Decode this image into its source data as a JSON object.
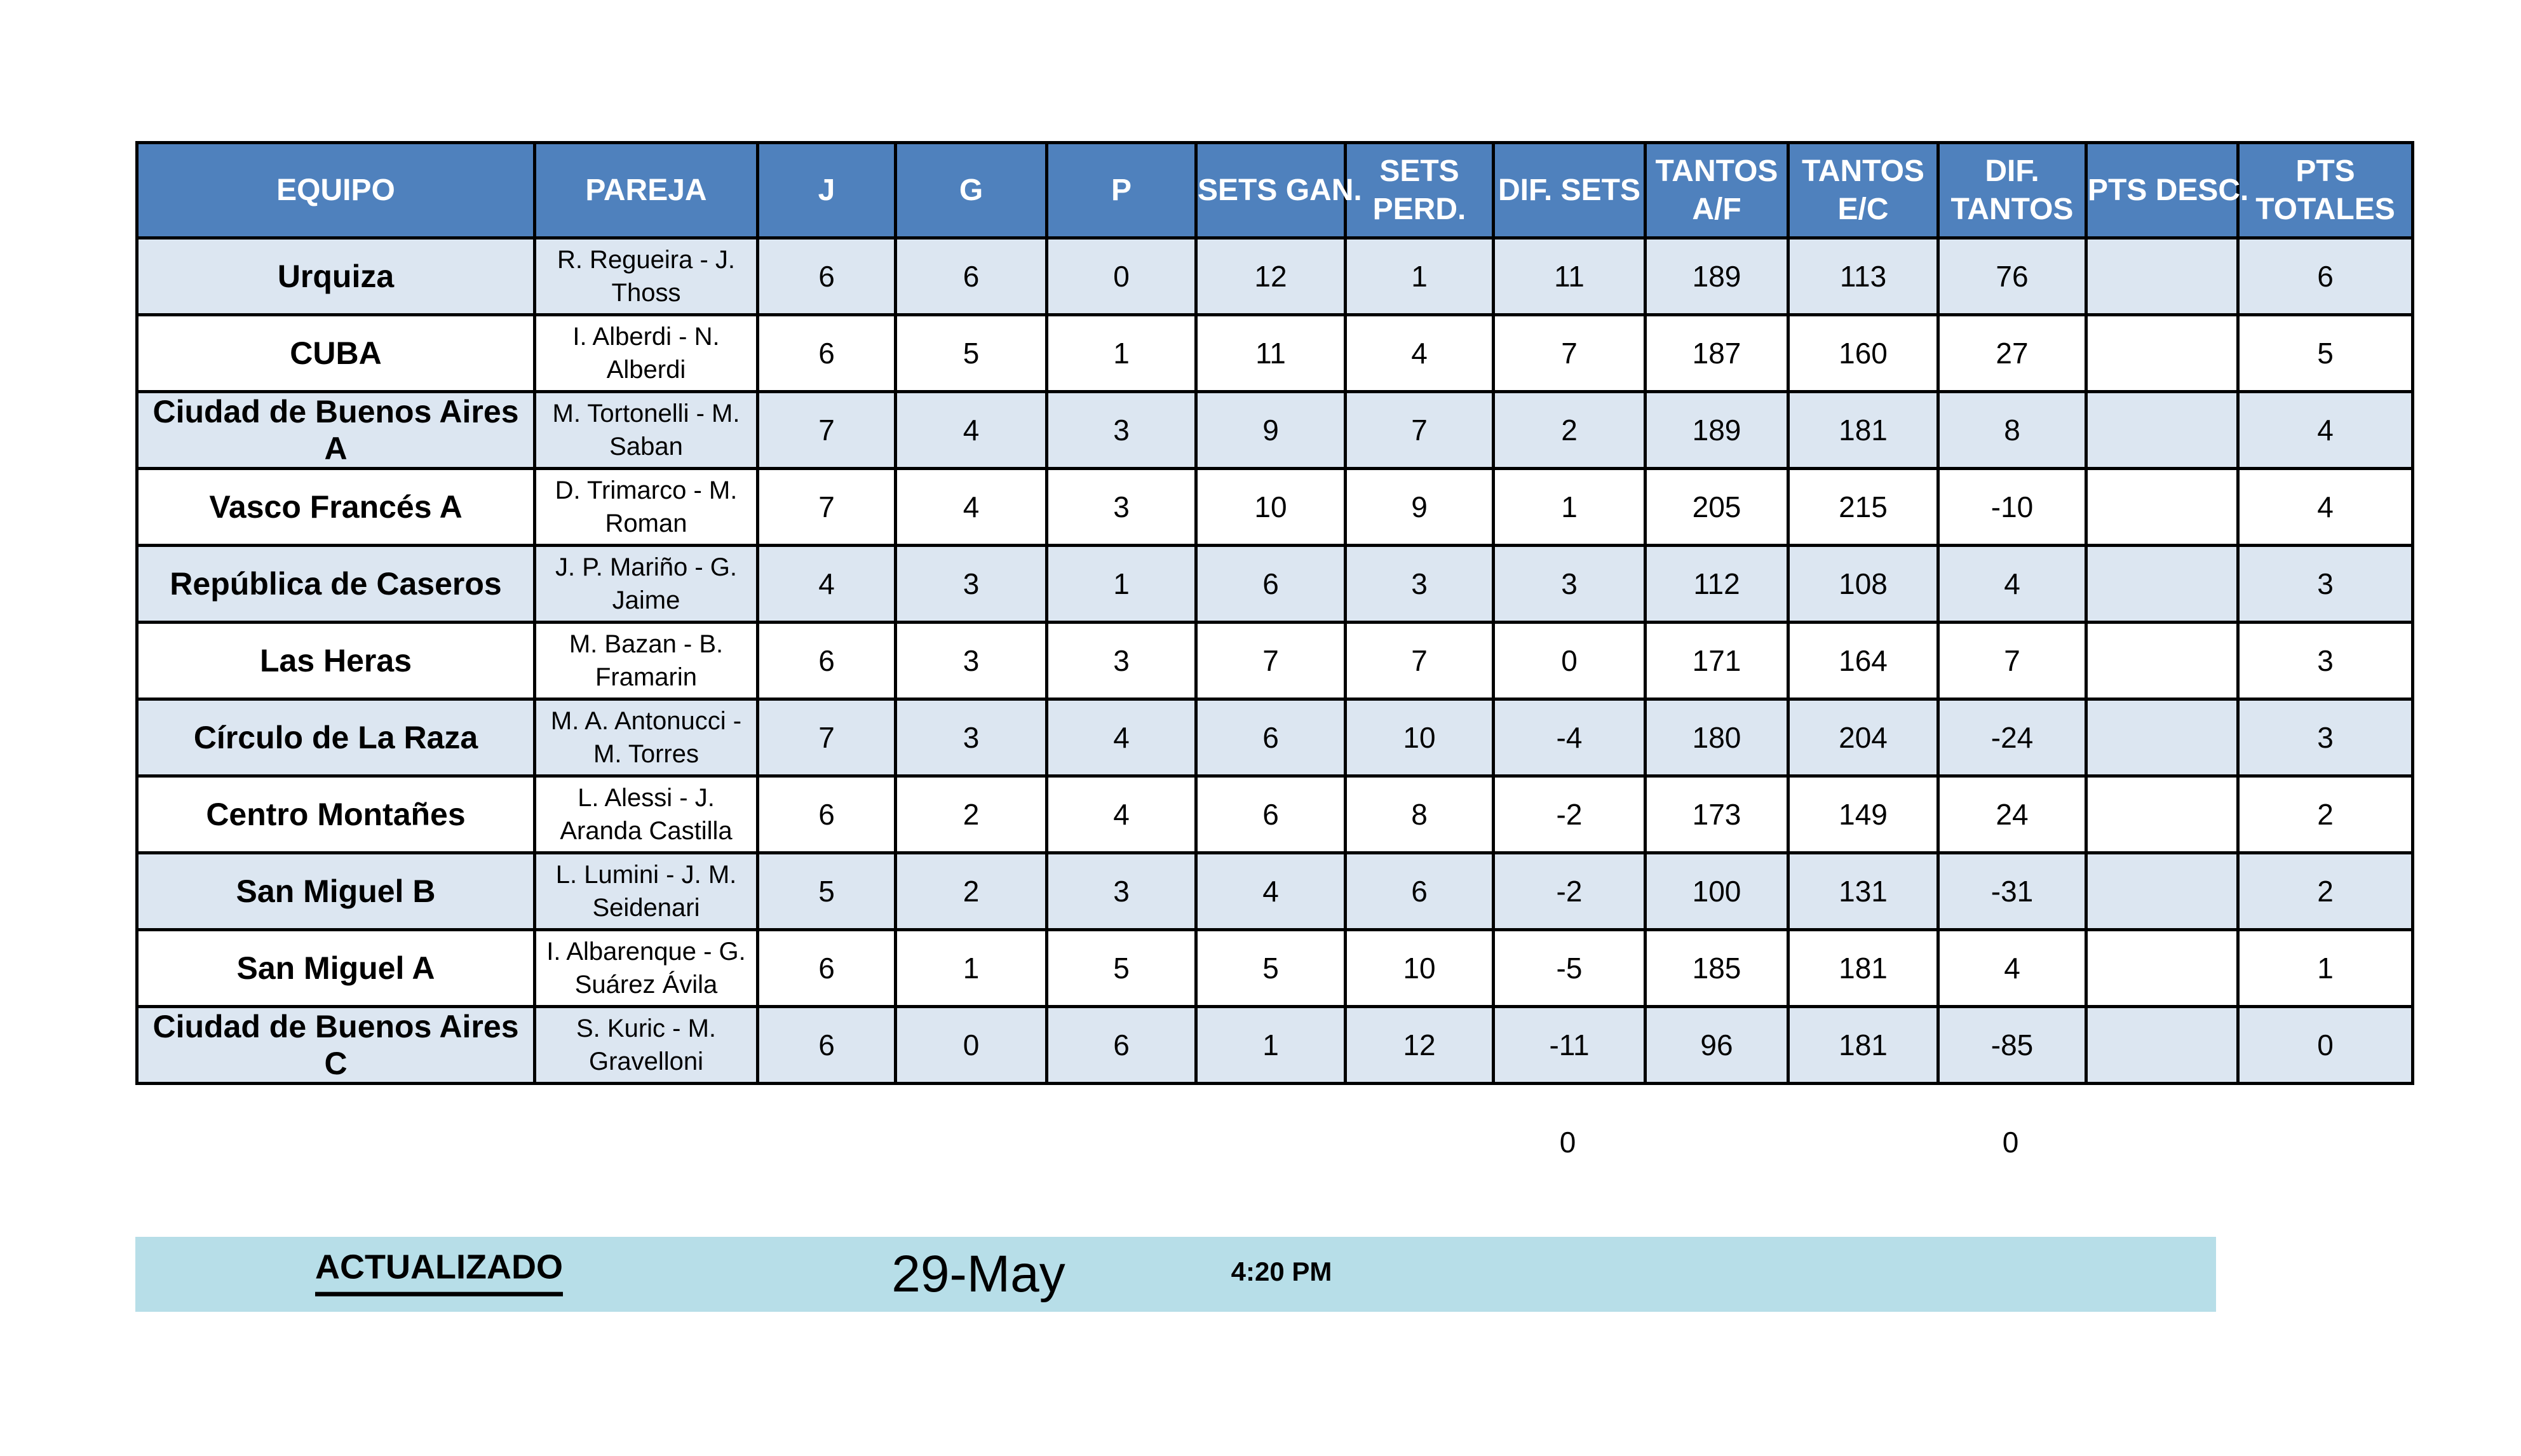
{
  "table": {
    "columns": [
      {
        "key": "equipo",
        "label": "EQUIPO"
      },
      {
        "key": "pareja",
        "label": "PAREJA"
      },
      {
        "key": "j",
        "label": "J"
      },
      {
        "key": "g",
        "label": "G"
      },
      {
        "key": "p",
        "label": "P"
      },
      {
        "key": "sets_gan",
        "label": "SETS GAN."
      },
      {
        "key": "sets_perd",
        "label": "SETS\nPERD."
      },
      {
        "key": "dif_sets",
        "label": "DIF. SETS"
      },
      {
        "key": "tantos_af",
        "label": "TANTOS\nA/F"
      },
      {
        "key": "tantos_ec",
        "label": "TANTOS\nE/C"
      },
      {
        "key": "dif_tantos",
        "label": "DIF.\nTANTOS"
      },
      {
        "key": "pts_desc",
        "label": "PTS DESC."
      },
      {
        "key": "pts_totales",
        "label": "PTS\nTOTALES"
      }
    ],
    "rows": [
      {
        "equipo": "Urquiza",
        "pareja": "R. Regueira - J. Thoss",
        "j": "6",
        "g": "6",
        "p": "0",
        "sets_gan": "12",
        "sets_perd": "1",
        "dif_sets": "11",
        "tantos_af": "189",
        "tantos_ec": "113",
        "dif_tantos": "76",
        "pts_desc": "",
        "pts_totales": "6"
      },
      {
        "equipo": "CUBA",
        "pareja": "I. Alberdi - N. Alberdi",
        "j": "6",
        "g": "5",
        "p": "1",
        "sets_gan": "11",
        "sets_perd": "4",
        "dif_sets": "7",
        "tantos_af": "187",
        "tantos_ec": "160",
        "dif_tantos": "27",
        "pts_desc": "",
        "pts_totales": "5"
      },
      {
        "equipo": "Ciudad de Buenos Aires A",
        "pareja": "M. Tortonelli - M. Saban",
        "j": "7",
        "g": "4",
        "p": "3",
        "sets_gan": "9",
        "sets_perd": "7",
        "dif_sets": "2",
        "tantos_af": "189",
        "tantos_ec": "181",
        "dif_tantos": "8",
        "pts_desc": "",
        "pts_totales": "4"
      },
      {
        "equipo": "Vasco Francés A",
        "pareja": "D. Trimarco - M. Roman",
        "j": "7",
        "g": "4",
        "p": "3",
        "sets_gan": "10",
        "sets_perd": "9",
        "dif_sets": "1",
        "tantos_af": "205",
        "tantos_ec": "215",
        "dif_tantos": "-10",
        "pts_desc": "",
        "pts_totales": "4"
      },
      {
        "equipo": "República de Caseros",
        "pareja": "J. P. Mariño - G. Jaime",
        "j": "4",
        "g": "3",
        "p": "1",
        "sets_gan": "6",
        "sets_perd": "3",
        "dif_sets": "3",
        "tantos_af": "112",
        "tantos_ec": "108",
        "dif_tantos": "4",
        "pts_desc": "",
        "pts_totales": "3"
      },
      {
        "equipo": "Las Heras",
        "pareja": "M. Bazan - B. Framarin",
        "j": "6",
        "g": "3",
        "p": "3",
        "sets_gan": "7",
        "sets_perd": "7",
        "dif_sets": "0",
        "tantos_af": "171",
        "tantos_ec": "164",
        "dif_tantos": "7",
        "pts_desc": "",
        "pts_totales": "3"
      },
      {
        "equipo": "Círculo de La Raza",
        "pareja": "M. A. Antonucci - M. Torres",
        "j": "7",
        "g": "3",
        "p": "4",
        "sets_gan": "6",
        "sets_perd": "10",
        "dif_sets": "-4",
        "tantos_af": "180",
        "tantos_ec": "204",
        "dif_tantos": "-24",
        "pts_desc": "",
        "pts_totales": "3"
      },
      {
        "equipo": "Centro Montañes",
        "pareja": "L. Alessi - J. Aranda Castilla",
        "j": "6",
        "g": "2",
        "p": "4",
        "sets_gan": "6",
        "sets_perd": "8",
        "dif_sets": "-2",
        "tantos_af": "173",
        "tantos_ec": "149",
        "dif_tantos": "24",
        "pts_desc": "",
        "pts_totales": "2"
      },
      {
        "equipo": "San Miguel B",
        "pareja": "L. Lumini - J. M. Seidenari",
        "j": "5",
        "g": "2",
        "p": "3",
        "sets_gan": "4",
        "sets_perd": "6",
        "dif_sets": "-2",
        "tantos_af": "100",
        "tantos_ec": "131",
        "dif_tantos": "-31",
        "pts_desc": "",
        "pts_totales": "2"
      },
      {
        "equipo": "San Miguel A",
        "pareja": "I. Albarenque - G. Suárez Ávila",
        "j": "6",
        "g": "1",
        "p": "5",
        "sets_gan": "5",
        "sets_perd": "10",
        "dif_sets": "-5",
        "tantos_af": "185",
        "tantos_ec": "181",
        "dif_tantos": "4",
        "pts_desc": "",
        "pts_totales": "1"
      },
      {
        "equipo": "Ciudad de Buenos Aires C",
        "pareja": "S. Kuric - M. Gravelloni",
        "j": "6",
        "g": "0",
        "p": "6",
        "sets_gan": "1",
        "sets_perd": "12",
        "dif_sets": "-11",
        "tantos_af": "96",
        "tantos_ec": "181",
        "dif_tantos": "-85",
        "pts_desc": "",
        "pts_totales": "0"
      }
    ]
  },
  "totals": {
    "dif_sets": "0",
    "dif_tantos": "0"
  },
  "footer": {
    "label": "ACTUALIZADO",
    "date": "29-May",
    "time": "4:20 PM"
  },
  "colors": {
    "header_bg": "#4f81bd",
    "header_text": "#ffffff",
    "row_alt_bg": "#dce6f1",
    "row_bg": "#ffffff",
    "border": "#000000",
    "footer_bg": "#b7dee8"
  }
}
